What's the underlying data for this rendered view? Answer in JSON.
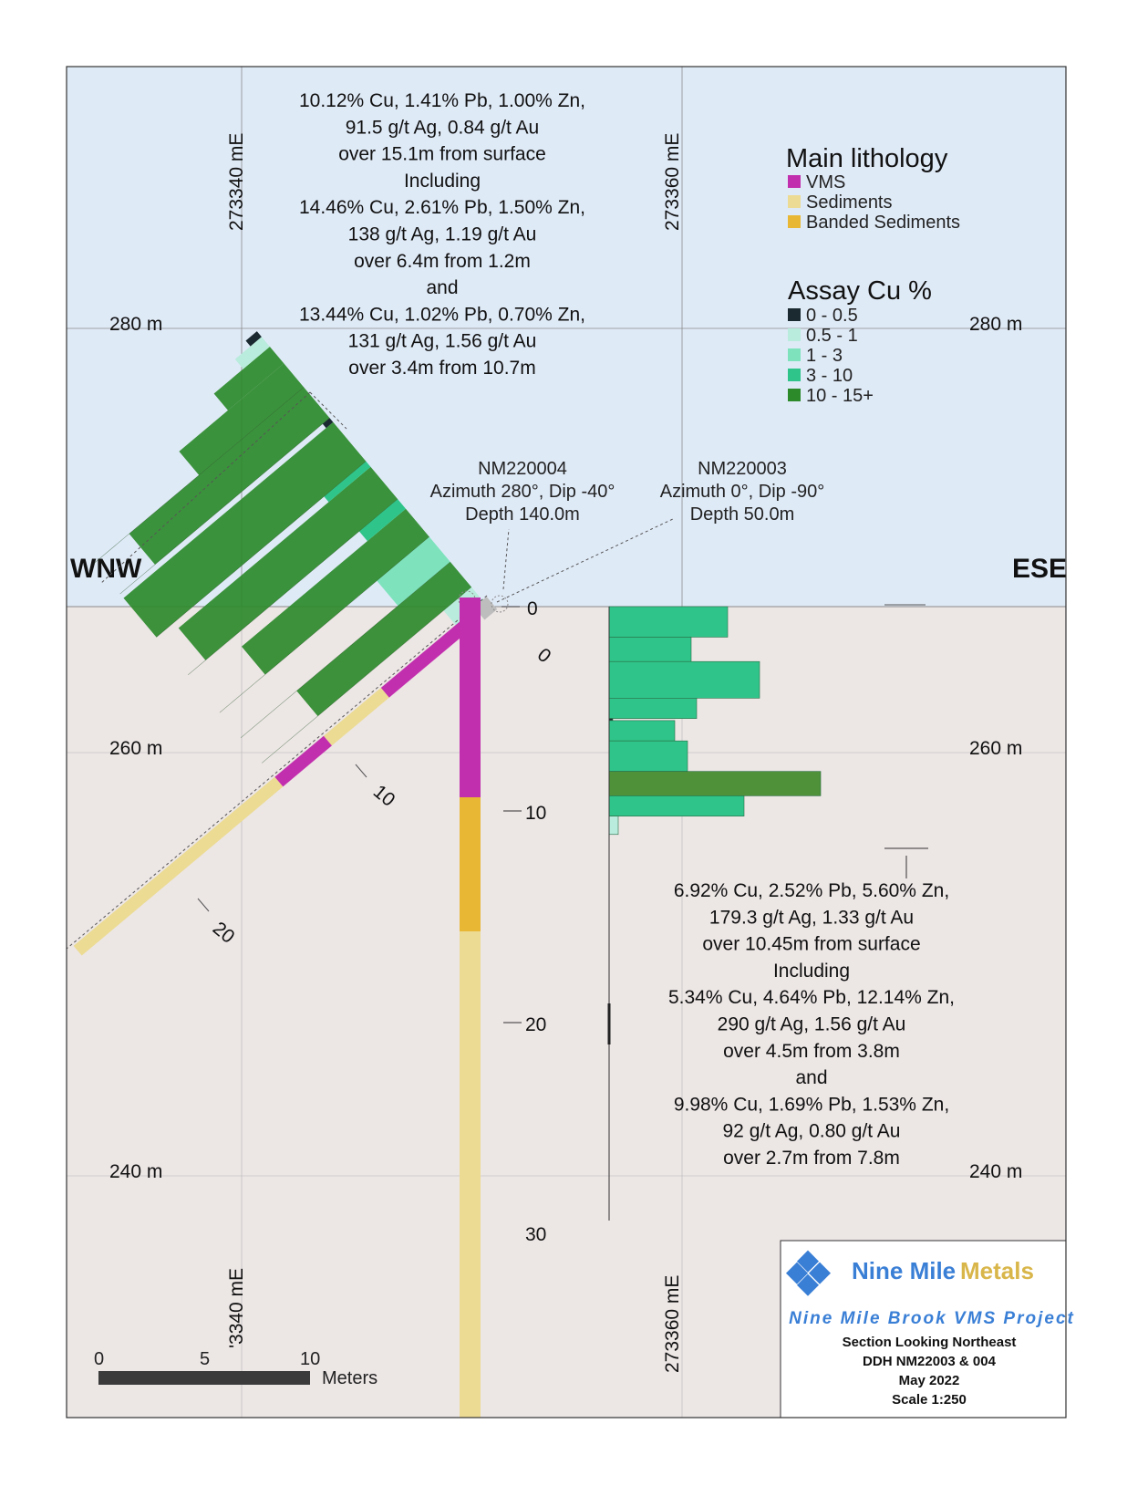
{
  "section": {
    "left_label": "WNW",
    "right_label": "ESE",
    "elevations": [
      "280 m",
      "260 m",
      "240 m"
    ],
    "easting_left": "273340 mE",
    "easting_left_bottom": "'3340 mE",
    "easting_right": "273360 mE",
    "colors": {
      "sky": "#dfeaf7",
      "ground": "#ece6e5",
      "frame": "#333333"
    }
  },
  "callout_nw": [
    "10.12% Cu, 1.41% Pb, 1.00% Zn,",
    "91.5 g/t Ag, 0.84 g/t Au",
    "over 15.1m from surface",
    "Including",
    "14.46% Cu, 2.61% Pb, 1.50% Zn,",
    "138 g/t Ag, 1.19 g/t Au",
    "over 6.4m from 1.2m",
    "and",
    "13.44% Cu, 1.02% Pb, 0.70% Zn,",
    "131 g/t Ag, 1.56 g/t Au",
    "over 3.4m from 10.7m"
  ],
  "callout_se": [
    "6.92% Cu, 2.52% Pb, 5.60% Zn,",
    "179.3 g/t Ag, 1.33 g/t Au",
    "over 10.45m from surface",
    "Including",
    "5.34% Cu, 4.64% Pb, 12.14% Zn,",
    "290 g/t Ag, 1.56 g/t Au",
    "over  4.5m from 3.8m",
    "and",
    "9.98% Cu, 1.69% Pb, 1.53% Zn,",
    "92 g/t Ag, 0.80 g/t Au",
    "over 2.7m from 7.8m"
  ],
  "holes": [
    {
      "id": "NM220004",
      "azimuth": "Azimuth 280°, Dip -40°",
      "depth": "Depth 140.0m"
    },
    {
      "id": "NM220003",
      "azimuth": "Azimuth 0°, Dip -90°",
      "depth": "Depth 50.0m"
    }
  ],
  "depth_ticks_vertical": [
    "0",
    "10",
    "20",
    "30"
  ],
  "depth_ticks_inclined": [
    "0",
    "10",
    "20"
  ],
  "legend": {
    "lithology_title": "Main lithology",
    "lithology": [
      {
        "label": "VMS",
        "color": "#c22fae"
      },
      {
        "label": "Sediments",
        "color": "#ecdb93"
      },
      {
        "label": "Banded Sediments",
        "color": "#e8b835"
      }
    ],
    "assay_title": "Assay Cu %",
    "assay": [
      {
        "label": "0 - 0.5",
        "color": "#1a2a30"
      },
      {
        "label": "0.5 - 1",
        "color": "#b9ecdc"
      },
      {
        "label": "1 - 3",
        "color": "#7ee3bd"
      },
      {
        "label": "3 - 10",
        "color": "#2fc58a"
      },
      {
        "label": "10 - 15+",
        "color": "#2d8a2b"
      }
    ]
  },
  "scale_bar": {
    "ticks": [
      "0",
      "5",
      "10"
    ],
    "unit": "Meters"
  },
  "title_block": {
    "company_a": "Nine Mile",
    "company_b": "Metals",
    "project": "Nine Mile Brook VMS Project",
    "lines": [
      "Section Looking Northeast",
      "DDH NM22003 & 004",
      "May 2022",
      "Scale 1:250"
    ]
  },
  "assay_nm220003_cu": [
    {
      "from": 0,
      "to": 1.5,
      "bin": "3 - 10"
    },
    {
      "from": 1.5,
      "to": 2.7,
      "bin": "3 - 10"
    },
    {
      "from": 2.7,
      "to": 4.5,
      "bin": "3 - 10"
    },
    {
      "from": 4.5,
      "to": 5.5,
      "bin": "3 - 10"
    },
    {
      "from": 5.5,
      "to": 5.6,
      "bin": "0 - 0.5"
    },
    {
      "from": 5.6,
      "to": 6.6,
      "bin": "3 - 10"
    },
    {
      "from": 6.6,
      "to": 8.1,
      "bin": "3 - 10"
    },
    {
      "from": 8.1,
      "to": 9.3,
      "bin": "10 - 15+"
    },
    {
      "from": 9.3,
      "to": 10.3,
      "bin": "3 - 10"
    },
    {
      "from": 10.3,
      "to": 11.2,
      "bin": "0.5 - 1"
    }
  ],
  "lithology_nm220003": [
    {
      "from": 0,
      "to": 9.5,
      "unit": "VMS"
    },
    {
      "from": 9.5,
      "to": 15.9,
      "unit": "Banded Sediments"
    },
    {
      "from": 15.9,
      "to": 38.0,
      "unit": "Sediments"
    }
  ],
  "lithology_nm220004": [
    {
      "from": 0,
      "to": 5.3,
      "unit": "VMS"
    },
    {
      "from": 5.3,
      "to": 8.8,
      "unit": "Sediments"
    },
    {
      "from": 8.8,
      "to": 11.8,
      "unit": "VMS"
    },
    {
      "from": 11.8,
      "to": 24.0,
      "unit": "Sediments"
    }
  ]
}
